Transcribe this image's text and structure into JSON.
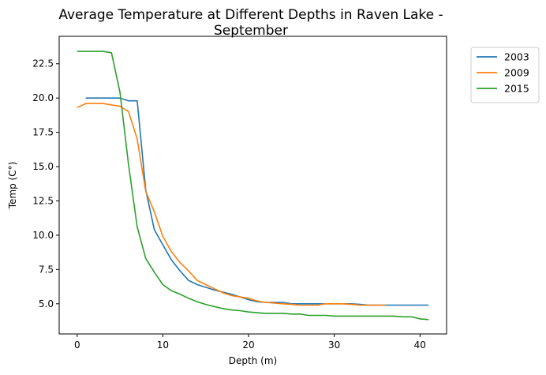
{
  "chart_data": {
    "type": "line",
    "title": "Average Temperature at Different Depths in Raven Lake -\nSeptember",
    "xlabel": "Depth (m)",
    "ylabel": "Temp (C°)",
    "xlim": [
      -2.1,
      43.1
    ],
    "ylim": [
      2.8,
      24.5
    ],
    "xticks": [
      0,
      10,
      20,
      30,
      40
    ],
    "yticks": [
      5.0,
      7.5,
      10.0,
      12.5,
      15.0,
      17.5,
      20.0,
      22.5
    ],
    "ytick_labels": [
      "5.0",
      "7.5",
      "10.0",
      "12.5",
      "15.0",
      "17.5",
      "20.0",
      "22.5"
    ],
    "grid": false,
    "legend_position": "outside-top-right",
    "series": [
      {
        "name": "2003",
        "color": "#1f77b4",
        "points": [
          [
            1,
            20.0
          ],
          [
            2,
            20.0
          ],
          [
            3,
            20.0
          ],
          [
            4,
            20.0
          ],
          [
            5,
            20.0
          ],
          [
            6,
            19.8
          ],
          [
            7,
            19.8
          ],
          [
            8,
            13.3
          ],
          [
            9,
            10.4
          ],
          [
            10,
            9.3
          ],
          [
            11,
            8.2
          ],
          [
            12,
            7.4
          ],
          [
            13,
            6.7
          ],
          [
            14,
            6.4
          ],
          [
            15,
            6.2
          ],
          [
            16,
            6.0
          ],
          [
            17,
            5.85
          ],
          [
            18,
            5.7
          ],
          [
            19,
            5.5
          ],
          [
            20,
            5.3
          ],
          [
            21,
            5.15
          ],
          [
            22,
            5.1
          ],
          [
            23,
            5.1
          ],
          [
            24,
            5.1
          ],
          [
            25,
            5.0
          ],
          [
            26,
            5.0
          ],
          [
            27,
            5.0
          ],
          [
            28,
            5.0
          ],
          [
            29,
            5.0
          ],
          [
            30,
            5.0
          ],
          [
            31,
            5.0
          ],
          [
            32,
            5.0
          ],
          [
            33,
            4.95
          ],
          [
            34,
            4.9
          ],
          [
            35,
            4.9
          ],
          [
            36,
            4.9
          ],
          [
            37,
            4.9
          ],
          [
            38,
            4.9
          ],
          [
            39,
            4.9
          ],
          [
            40,
            4.9
          ],
          [
            41,
            4.9
          ]
        ]
      },
      {
        "name": "2009",
        "color": "#ff7f0e",
        "points": [
          [
            0,
            19.3
          ],
          [
            1,
            19.6
          ],
          [
            2,
            19.6
          ],
          [
            3,
            19.6
          ],
          [
            4,
            19.5
          ],
          [
            5,
            19.4
          ],
          [
            6,
            19.0
          ],
          [
            7,
            17.0
          ],
          [
            8,
            13.2
          ],
          [
            9,
            11.7
          ],
          [
            10,
            9.9
          ],
          [
            11,
            8.8
          ],
          [
            12,
            8.0
          ],
          [
            13,
            7.4
          ],
          [
            14,
            6.7
          ],
          [
            15,
            6.4
          ],
          [
            16,
            6.1
          ],
          [
            17,
            5.8
          ],
          [
            18,
            5.6
          ],
          [
            19,
            5.5
          ],
          [
            20,
            5.4
          ],
          [
            21,
            5.2
          ],
          [
            22,
            5.1
          ],
          [
            23,
            5.05
          ],
          [
            24,
            5.0
          ],
          [
            25,
            4.95
          ],
          [
            26,
            4.9
          ],
          [
            27,
            4.9
          ],
          [
            28,
            4.9
          ],
          [
            29,
            5.0
          ],
          [
            30,
            5.0
          ],
          [
            31,
            5.0
          ],
          [
            32,
            4.95
          ],
          [
            33,
            4.9
          ],
          [
            34,
            4.9
          ],
          [
            35,
            4.9
          ],
          [
            36,
            4.9
          ]
        ]
      },
      {
        "name": "2015",
        "color": "#2ca02c",
        "points": [
          [
            0,
            23.4
          ],
          [
            1,
            23.4
          ],
          [
            2,
            23.4
          ],
          [
            3,
            23.4
          ],
          [
            4,
            23.3
          ],
          [
            5,
            20.4
          ],
          [
            6,
            15.1
          ],
          [
            7,
            10.6
          ],
          [
            8,
            8.3
          ],
          [
            9,
            7.3
          ],
          [
            10,
            6.4
          ],
          [
            11,
            5.95
          ],
          [
            12,
            5.7
          ],
          [
            13,
            5.4
          ],
          [
            14,
            5.15
          ],
          [
            15,
            4.95
          ],
          [
            16,
            4.8
          ],
          [
            17,
            4.65
          ],
          [
            18,
            4.55
          ],
          [
            19,
            4.5
          ],
          [
            20,
            4.4
          ],
          [
            21,
            4.35
          ],
          [
            22,
            4.3
          ],
          [
            23,
            4.3
          ],
          [
            24,
            4.3
          ],
          [
            25,
            4.25
          ],
          [
            26,
            4.25
          ],
          [
            27,
            4.15
          ],
          [
            28,
            4.15
          ],
          [
            29,
            4.15
          ],
          [
            30,
            4.1
          ],
          [
            31,
            4.1
          ],
          [
            32,
            4.1
          ],
          [
            33,
            4.1
          ],
          [
            34,
            4.1
          ],
          [
            35,
            4.1
          ],
          [
            36,
            4.1
          ],
          [
            37,
            4.1
          ],
          [
            38,
            4.05
          ],
          [
            39,
            4.05
          ],
          [
            40,
            3.9
          ],
          [
            41,
            3.85
          ]
        ]
      }
    ]
  }
}
